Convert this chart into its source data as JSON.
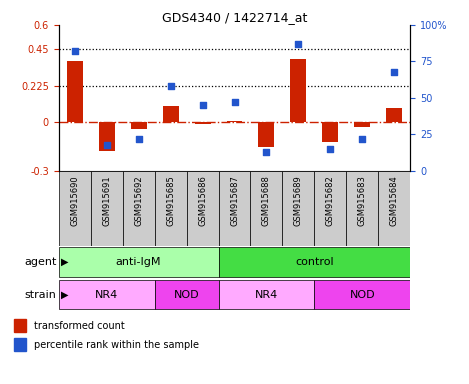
{
  "title": "GDS4340 / 1422714_at",
  "samples": [
    "GSM915690",
    "GSM915691",
    "GSM915692",
    "GSM915685",
    "GSM915686",
    "GSM915687",
    "GSM915688",
    "GSM915689",
    "GSM915682",
    "GSM915683",
    "GSM915684"
  ],
  "transformed_count": [
    0.38,
    -0.18,
    -0.04,
    0.1,
    -0.01,
    0.01,
    -0.15,
    0.39,
    -0.12,
    -0.03,
    0.09
  ],
  "percentile_rank": [
    82,
    18,
    22,
    58,
    45,
    47,
    13,
    87,
    15,
    22,
    68
  ],
  "left_ylim": [
    -0.3,
    0.6
  ],
  "right_ylim": [
    0,
    100
  ],
  "left_yticks": [
    -0.3,
    0,
    0.225,
    0.45,
    0.6
  ],
  "left_yticklabels": [
    "-0.3",
    "0",
    "0.225",
    "0.45",
    "0.6"
  ],
  "right_yticks": [
    0,
    25,
    50,
    75,
    100
  ],
  "right_yticklabels": [
    "0",
    "25",
    "50",
    "75",
    "100%"
  ],
  "hline_values": [
    0.225,
    0.45
  ],
  "bar_color": "#CC2200",
  "dot_color": "#2255CC",
  "zero_line_color": "#CC2200",
  "agent_groups": [
    {
      "label": "anti-IgM",
      "start": 0,
      "end": 5,
      "color": "#AAFFAA"
    },
    {
      "label": "control",
      "start": 5,
      "end": 11,
      "color": "#44DD44"
    }
  ],
  "strain_groups": [
    {
      "label": "NR4",
      "start": 0,
      "end": 3,
      "color": "#FFAAFF"
    },
    {
      "label": "NOD",
      "start": 3,
      "end": 5,
      "color": "#EE44EE"
    },
    {
      "label": "NR4",
      "start": 5,
      "end": 8,
      "color": "#FFAAFF"
    },
    {
      "label": "NOD",
      "start": 8,
      "end": 11,
      "color": "#EE44EE"
    }
  ],
  "agent_label": "agent",
  "strain_label": "strain",
  "legend_items": [
    {
      "label": "transformed count",
      "color": "#CC2200"
    },
    {
      "label": "percentile rank within the sample",
      "color": "#2255CC"
    }
  ],
  "sample_box_color": "#CCCCCC",
  "sample_fontsize": 6,
  "group_fontsize": 8,
  "label_fontsize": 8
}
